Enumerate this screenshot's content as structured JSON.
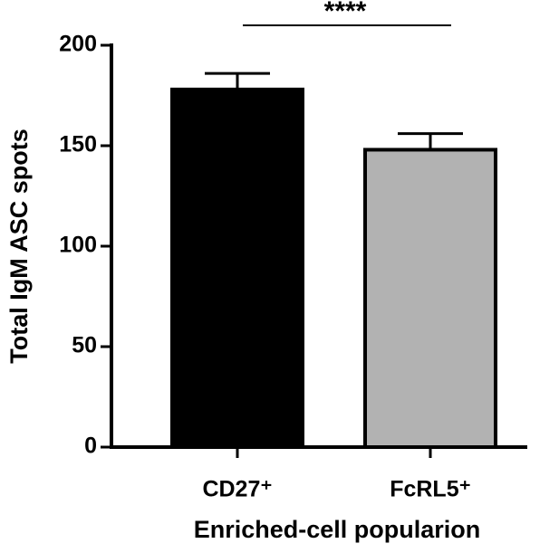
{
  "chart_data": {
    "type": "bar",
    "categories": [
      "CD27⁺",
      "FcRL5⁺"
    ],
    "values": [
      178,
      148
    ],
    "errors": [
      8,
      8
    ],
    "colors": [
      "#000000",
      "#b2b2b2"
    ],
    "ylim": [
      0,
      200
    ],
    "yticks": [
      0,
      50,
      100,
      150,
      200
    ],
    "ylabel": "Total IgM ASC spots",
    "xlabel": "Enriched-cell popularion",
    "annotation": "****"
  }
}
